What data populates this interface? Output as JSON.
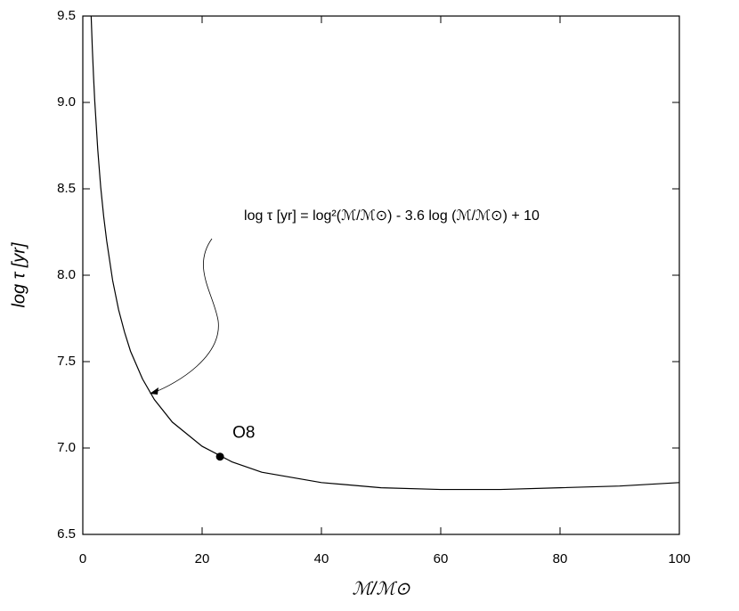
{
  "chart_data": {
    "type": "line",
    "x_label": "ℳ/ℳ⊙",
    "y_label": "log τ [yr]",
    "annotation": "log τ [yr] = log²(ℳ/ℳ⊙) - 3.6 log (ℳ/ℳ⊙) + 10",
    "x": [
      1.4,
      1.6,
      1.8,
      2,
      2.5,
      3,
      3.5,
      4,
      5,
      6,
      7,
      8,
      10,
      12,
      15,
      20,
      25,
      30,
      40,
      50,
      60,
      70,
      80,
      90,
      100
    ],
    "series": [
      {
        "color": "#000000",
        "values": [
          9.5,
          9.31,
          9.15,
          9.01,
          8.73,
          8.51,
          8.34,
          8.2,
          7.97,
          7.8,
          7.67,
          7.56,
          7.4,
          7.28,
          7.15,
          7.01,
          6.92,
          6.86,
          6.8,
          6.77,
          6.76,
          6.76,
          6.77,
          6.78,
          6.8
        ]
      }
    ],
    "points": [
      {
        "label": "O8",
        "x": 23,
        "y": 6.95
      }
    ],
    "xlim": [
      0,
      100
    ],
    "xticks": [
      0,
      20,
      40,
      60,
      80,
      100
    ],
    "ylim": [
      6.5,
      9.5
    ],
    "yticks": [
      6.5,
      {
        "value": 7,
        "label": "7.0"
      },
      7.5,
      {
        "value": 8,
        "label": "8.0"
      },
      8.5,
      {
        "value": 9,
        "label": "9.0"
      },
      9.5
    ],
    "grid": false
  }
}
